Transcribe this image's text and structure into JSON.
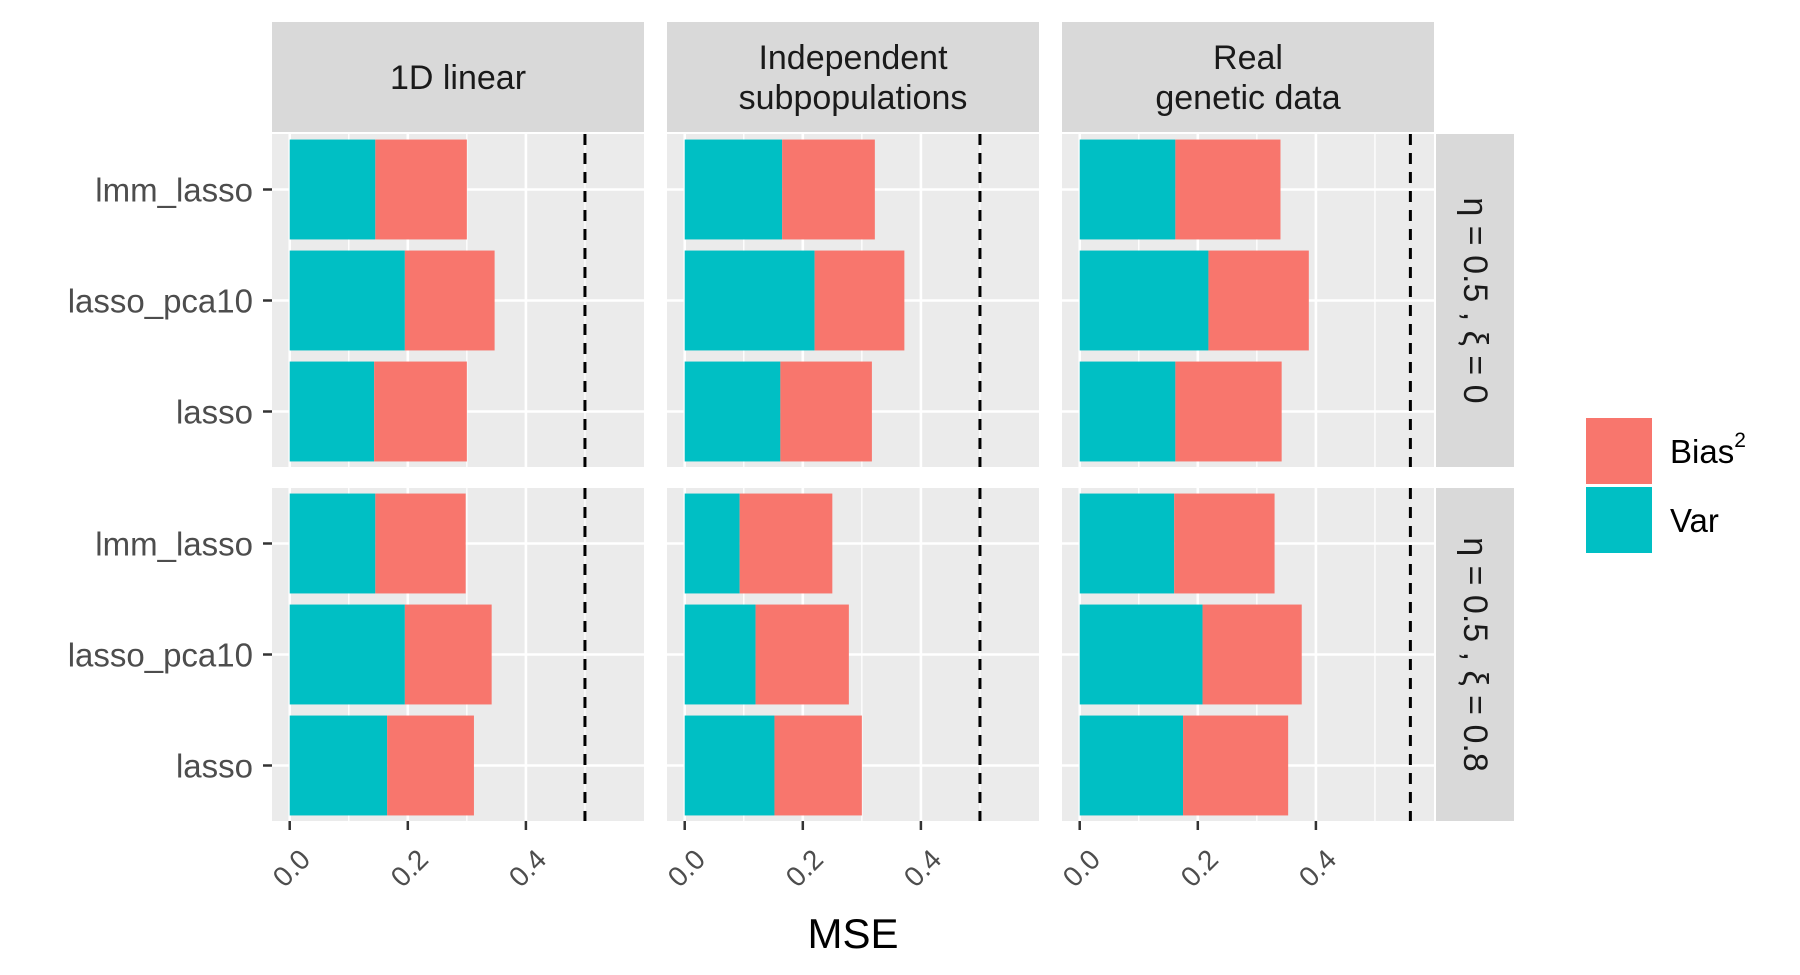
{
  "chart_data": {
    "type": "bar",
    "orientation": "horizontal",
    "stacked": true,
    "xlabel": "MSE",
    "xlim": [
      -0.03,
      0.6
    ],
    "x_ticks": [
      "0.0",
      "0.2",
      "0.4"
    ],
    "x_tick_values": [
      0.0,
      0.2,
      0.4
    ],
    "categories": [
      "lmm_lasso",
      "lasso_pca10",
      "lasso"
    ],
    "column_facets": [
      {
        "label": "1D linear",
        "threshold": 0.5
      },
      {
        "label": "Independent\nsubpopulations",
        "threshold": 0.5
      },
      {
        "label": "Real\ngenetic data",
        "threshold": 0.56
      }
    ],
    "row_facets": [
      {
        "label": "η = 0.5 , ξ = 0"
      },
      {
        "label": "η = 0.5 , ξ = 0.8"
      }
    ],
    "legend": {
      "position": "right",
      "items": [
        {
          "name": "Bias",
          "superscript": "2",
          "color": "#F8766D"
        },
        {
          "name": "Var",
          "color": "#00BFC4"
        }
      ]
    },
    "panels": [
      {
        "col": 0,
        "row": 0,
        "var": [
          0.145,
          0.195,
          0.143
        ],
        "bias2": [
          0.155,
          0.152,
          0.157
        ]
      },
      {
        "col": 1,
        "row": 0,
        "var": [
          0.165,
          0.22,
          0.162
        ],
        "bias2": [
          0.157,
          0.152,
          0.155
        ]
      },
      {
        "col": 2,
        "row": 0,
        "var": [
          0.162,
          0.218,
          0.162
        ],
        "bias2": [
          0.178,
          0.17,
          0.18
        ]
      },
      {
        "col": 0,
        "row": 1,
        "var": [
          0.145,
          0.195,
          0.165
        ],
        "bias2": [
          0.153,
          0.147,
          0.147
        ]
      },
      {
        "col": 1,
        "row": 1,
        "var": [
          0.093,
          0.12,
          0.152
        ],
        "bias2": [
          0.157,
          0.158,
          0.148
        ]
      },
      {
        "col": 2,
        "row": 1,
        "var": [
          0.16,
          0.208,
          0.175
        ],
        "bias2": [
          0.17,
          0.168,
          0.178
        ]
      }
    ]
  }
}
